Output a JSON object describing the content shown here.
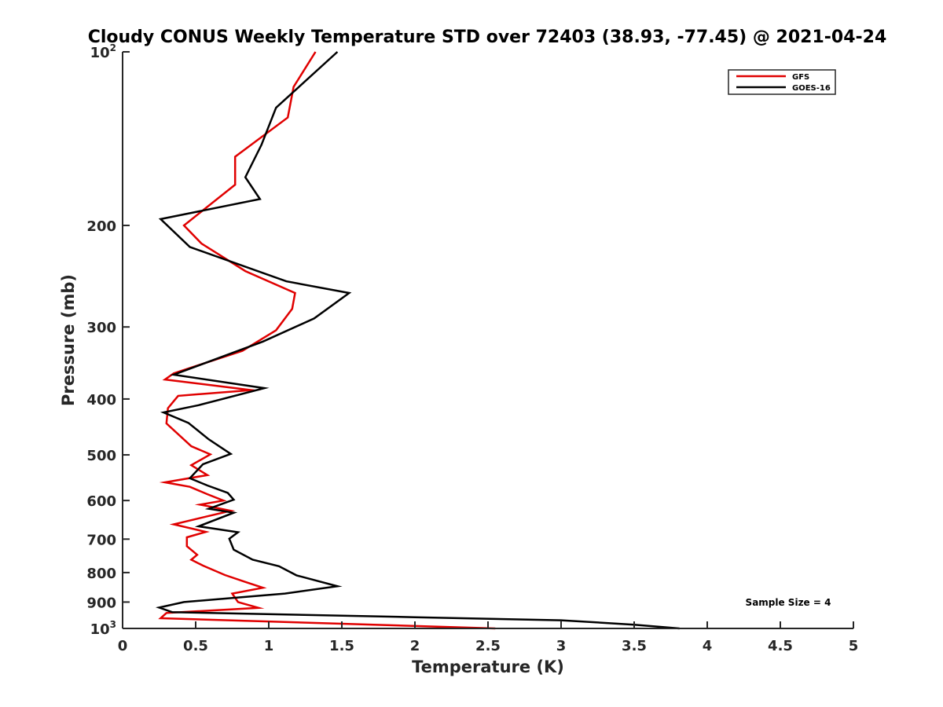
{
  "chart_data": {
    "type": "line",
    "title": "Cloudy CONUS Weekly Temperature STD over 72403 (38.93, -77.45) @ 2021-04-24",
    "xlabel": "Temperature (K)",
    "ylabel": "Pressure (mb)",
    "xlim": [
      0,
      5
    ],
    "ylim": [
      100,
      1000
    ],
    "y_scale": "log",
    "y_reversed": true,
    "x_ticks": [
      "0",
      "0.5",
      "1",
      "1.5",
      "2",
      "2.5",
      "3",
      "3.5",
      "4",
      "4.5",
      "5"
    ],
    "y_ticks": [
      {
        "value": 100,
        "label": "10",
        "sup": "2"
      },
      {
        "value": 200,
        "label": "200"
      },
      {
        "value": 300,
        "label": "300"
      },
      {
        "value": 400,
        "label": "400"
      },
      {
        "value": 500,
        "label": "500"
      },
      {
        "value": 600,
        "label": "600"
      },
      {
        "value": 700,
        "label": "700"
      },
      {
        "value": 800,
        "label": "800"
      },
      {
        "value": 900,
        "label": "900"
      },
      {
        "value": 1000,
        "label": "10",
        "sup": "3"
      }
    ],
    "legend_position": "top-right",
    "grid": false,
    "annotation": "Sample Size = 4",
    "series": [
      {
        "name": "GFS",
        "color": "#e00000",
        "points": [
          [
            1.32,
            100
          ],
          [
            1.17,
            115
          ],
          [
            1.13,
            130
          ],
          [
            0.77,
            152
          ],
          [
            0.77,
            170
          ],
          [
            0.42,
            200
          ],
          [
            0.54,
            215
          ],
          [
            0.84,
            240
          ],
          [
            1.18,
            262
          ],
          [
            1.16,
            279
          ],
          [
            1.05,
            304
          ],
          [
            0.82,
            330
          ],
          [
            0.35,
            361
          ],
          [
            0.29,
            370
          ],
          [
            0.88,
            386
          ],
          [
            0.38,
            395
          ],
          [
            0.31,
            415
          ],
          [
            0.3,
            441
          ],
          [
            0.47,
            483
          ],
          [
            0.6,
            499
          ],
          [
            0.47,
            521
          ],
          [
            0.58,
            542
          ],
          [
            0.29,
            558
          ],
          [
            0.46,
            568
          ],
          [
            0.58,
            585
          ],
          [
            0.69,
            600
          ],
          [
            0.53,
            610
          ],
          [
            0.74,
            625
          ],
          [
            0.57,
            640
          ],
          [
            0.35,
            660
          ],
          [
            0.57,
            680
          ],
          [
            0.44,
            695
          ],
          [
            0.44,
            720
          ],
          [
            0.51,
            745
          ],
          [
            0.47,
            760
          ],
          [
            0.55,
            778
          ],
          [
            0.7,
            808
          ],
          [
            0.85,
            832
          ],
          [
            0.96,
            850
          ],
          [
            0.75,
            870
          ],
          [
            0.79,
            900
          ],
          [
            0.93,
            921
          ],
          [
            0.3,
            940
          ],
          [
            0.26,
            960
          ],
          [
            2.55,
            1000
          ]
        ]
      },
      {
        "name": "GOES-16",
        "color": "#000000",
        "points": [
          [
            1.47,
            100
          ],
          [
            1.05,
            125
          ],
          [
            0.95,
            145
          ],
          [
            0.84,
            165
          ],
          [
            0.94,
            180
          ],
          [
            0.26,
            195
          ],
          [
            0.46,
            218
          ],
          [
            1.12,
            250
          ],
          [
            1.55,
            262
          ],
          [
            1.31,
            290
          ],
          [
            0.96,
            318
          ],
          [
            0.35,
            363
          ],
          [
            0.97,
            383
          ],
          [
            0.52,
            410
          ],
          [
            0.28,
            422
          ],
          [
            0.45,
            440
          ],
          [
            0.59,
            470
          ],
          [
            0.74,
            498
          ],
          [
            0.55,
            519
          ],
          [
            0.46,
            549
          ],
          [
            0.58,
            565
          ],
          [
            0.72,
            582
          ],
          [
            0.76,
            598
          ],
          [
            0.59,
            620
          ],
          [
            0.76,
            630
          ],
          [
            0.52,
            665
          ],
          [
            0.79,
            681
          ],
          [
            0.73,
            699
          ],
          [
            0.76,
            730
          ],
          [
            0.89,
            760
          ],
          [
            1.07,
            780
          ],
          [
            1.19,
            809
          ],
          [
            1.47,
            845
          ],
          [
            1.11,
            870
          ],
          [
            0.42,
            900
          ],
          [
            0.25,
            920
          ],
          [
            0.34,
            937
          ],
          [
            2.0,
            956
          ],
          [
            3.0,
            968
          ],
          [
            3.5,
            985
          ],
          [
            3.81,
            1000
          ]
        ]
      }
    ]
  }
}
